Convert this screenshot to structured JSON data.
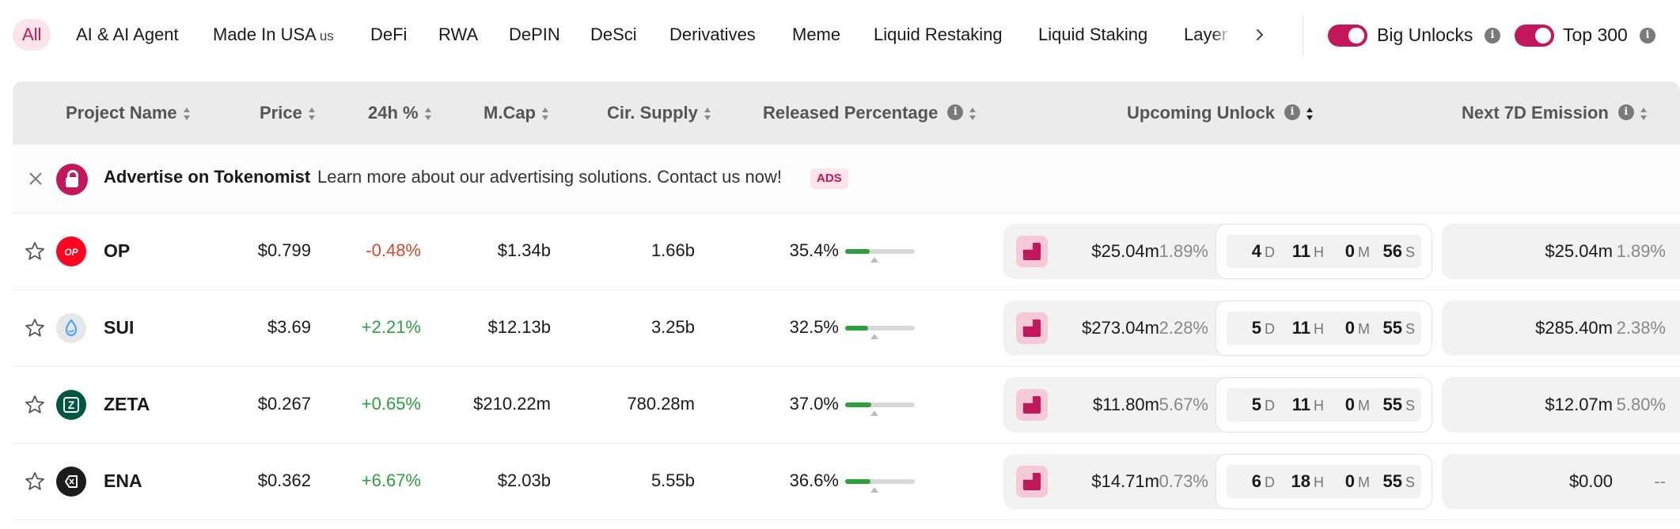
{
  "categories": {
    "items": [
      {
        "label": "All",
        "active": true
      },
      {
        "label": "AI & AI Agent"
      },
      {
        "label": "Made In USA",
        "suffix": "us"
      },
      {
        "label": "DeFi"
      },
      {
        "label": "RWA"
      },
      {
        "label": "DePIN"
      },
      {
        "label": "DeSci"
      },
      {
        "label": "Derivatives"
      },
      {
        "label": "Meme"
      },
      {
        "label": "Liquid Restaking"
      },
      {
        "label": "Liquid Staking"
      },
      {
        "label": "Layer"
      }
    ],
    "next_icon": "chevron-right-icon"
  },
  "toggles": {
    "big_unlocks": {
      "label": "Big Unlocks",
      "on": true
    },
    "top_300": {
      "label": "Top 300",
      "on": true
    }
  },
  "table": {
    "headers": {
      "project_name": "Project Name",
      "price": "Price",
      "change_24h": "24h %",
      "market_cap": "M.Cap",
      "circulating_supply": "Cir. Supply",
      "released_percentage": "Released Percentage",
      "upcoming_unlock": "Upcoming Unlock",
      "next_7d_emission": "Next 7D Emission"
    },
    "ad": {
      "title": "Advertise on Tokenomist",
      "text": "Learn more about our advertising solutions. Contact us now!",
      "badge": "ADS"
    },
    "rows": [
      {
        "symbol": "OP",
        "icon": "optimism-icon",
        "logo_text": "OP",
        "price": "$0.799",
        "change": "-0.48%",
        "change_dir": "neg",
        "mcap": "$1.34b",
        "supply": "1.66b",
        "released_pct": "35.4%",
        "released_value": 0.354,
        "unlock_value": "$25.04m",
        "unlock_pct": "1.89%",
        "countdown": {
          "d": "4",
          "h": "11",
          "m": "0",
          "s": "56"
        },
        "emission_value": "$25.04m",
        "emission_pct": "1.89%"
      },
      {
        "symbol": "SUI",
        "icon": "sui-icon",
        "logo_text": "",
        "price": "$3.69",
        "change": "+2.21%",
        "change_dir": "pos",
        "mcap": "$12.13b",
        "supply": "3.25b",
        "released_pct": "32.5%",
        "released_value": 0.325,
        "unlock_value": "$273.04m",
        "unlock_pct": "2.28%",
        "countdown": {
          "d": "5",
          "h": "11",
          "m": "0",
          "s": "55"
        },
        "emission_value": "$285.40m",
        "emission_pct": "2.38%"
      },
      {
        "symbol": "ZETA",
        "icon": "zetachain-icon",
        "logo_text": "Z",
        "price": "$0.267",
        "change": "+0.65%",
        "change_dir": "pos",
        "mcap": "$210.22m",
        "supply": "780.28m",
        "released_pct": "37.0%",
        "released_value": 0.37,
        "unlock_value": "$11.80m",
        "unlock_pct": "5.67%",
        "countdown": {
          "d": "5",
          "h": "11",
          "m": "0",
          "s": "55"
        },
        "emission_value": "$12.07m",
        "emission_pct": "5.80%"
      },
      {
        "symbol": "ENA",
        "icon": "ethena-icon",
        "logo_text": "",
        "price": "$0.362",
        "change": "+6.67%",
        "change_dir": "pos",
        "mcap": "$2.03b",
        "supply": "5.55b",
        "released_pct": "36.6%",
        "released_value": 0.366,
        "unlock_value": "$14.71m",
        "unlock_pct": "0.73%",
        "countdown": {
          "d": "6",
          "h": "18",
          "m": "0",
          "s": "55"
        },
        "emission_value": "$0.00",
        "emission_pct": "--"
      }
    ],
    "countdown_units": {
      "d": "D",
      "h": "H",
      "m": "M",
      "s": "S"
    }
  },
  "colors": {
    "accent": "#c2185b",
    "accent_soft": "#fbe4ea",
    "positive": "#2e9e3f",
    "negative": "#d24a2f",
    "op_red": "#ff0420",
    "zeta_green": "#005741",
    "sui_bg": "#e5e7eb",
    "ena_bg": "#1c1c1c"
  }
}
